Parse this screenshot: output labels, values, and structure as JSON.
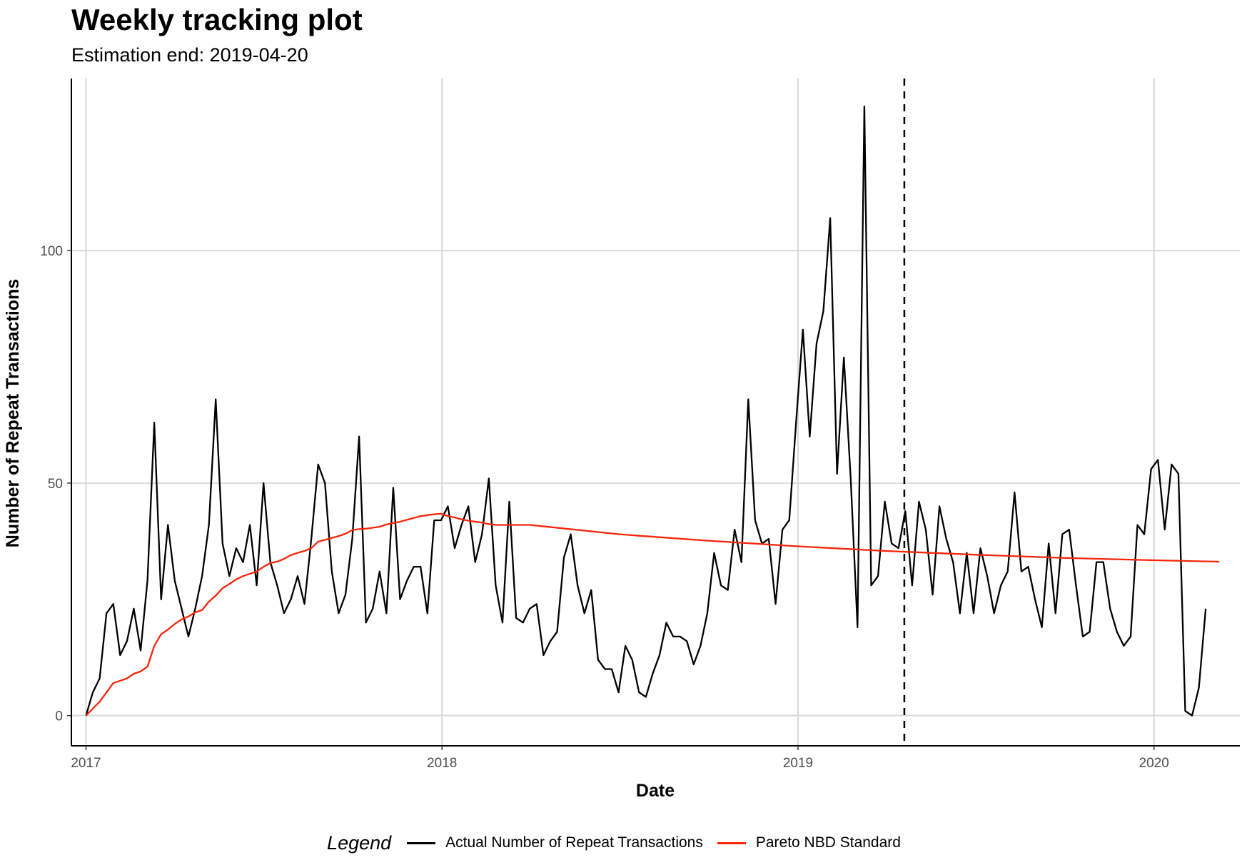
{
  "chart_data": {
    "type": "line",
    "title": "Weekly tracking plot",
    "subtitle": "Estimation end: 2019-04-20",
    "xlabel": "Date",
    "ylabel": "Number of Repeat Transactions",
    "x_ticks": [
      "2017",
      "2018",
      "2019",
      "2020"
    ],
    "y_ticks": [
      0,
      50,
      100
    ],
    "xlim": [
      "2016-12-17",
      "2020-03-29"
    ],
    "ylim": [
      -6.5,
      137
    ],
    "grid": true,
    "legend_position": "bottom",
    "legend_title": "Legend",
    "estimation_end": "2019-04-20",
    "series": [
      {
        "name": "Actual Number of Repeat Transactions",
        "color": "#000000",
        "x_start": "2017-01-01",
        "x_step_days": 7,
        "values": [
          0,
          5,
          8,
          22,
          24,
          13,
          16,
          23,
          14,
          29,
          63,
          25,
          41,
          29,
          23,
          17,
          23,
          30,
          41,
          68,
          37,
          30,
          36,
          33,
          41,
          28,
          50,
          33,
          28,
          22,
          25,
          30,
          24,
          38,
          54,
          50,
          31,
          22,
          26,
          38,
          60,
          20,
          23,
          31,
          22,
          49,
          25,
          29,
          32,
          32,
          22,
          42,
          42,
          45,
          36,
          41,
          45,
          33,
          39,
          51,
          28,
          20,
          46,
          21,
          20,
          23,
          24,
          13,
          16,
          18,
          34,
          39,
          28,
          22,
          27,
          12,
          10,
          10,
          5,
          15,
          12,
          5,
          4,
          9,
          13,
          20,
          17,
          17,
          16,
          11,
          15,
          22,
          35,
          28,
          27,
          40,
          33,
          68,
          42,
          37,
          38,
          24,
          40,
          42,
          63,
          83,
          60,
          80,
          87,
          107,
          52,
          77,
          51,
          19,
          131,
          28,
          30,
          46,
          37,
          36,
          44,
          28,
          46,
          40,
          26,
          45,
          38,
          33,
          22,
          35,
          22,
          36,
          30,
          22,
          28,
          31,
          48,
          31,
          32,
          25,
          19,
          37,
          22,
          39,
          40,
          28,
          17,
          18,
          33,
          33,
          23,
          18,
          15,
          17,
          41,
          39,
          53,
          55,
          40,
          54,
          52,
          1,
          0,
          6,
          23
        ]
      },
      {
        "name": "Pareto NBD Standard",
        "color": "#f8250b",
        "x_start": "2017-01-01",
        "x_step_days": 7,
        "values": [
          0,
          1.5,
          3,
          5,
          7,
          7.5,
          8,
          9,
          9.5,
          10.5,
          15,
          17.5,
          18.5,
          19.7,
          20.7,
          21.3,
          22.2,
          22.7,
          24.5,
          25.8,
          27.4,
          28.3,
          29.3,
          30,
          30.5,
          31,
          32,
          32.8,
          33.1,
          33.7,
          34.5,
          35,
          35.4,
          36,
          37.4,
          37.8,
          38.2,
          38.6,
          39.1,
          39.9,
          40.1,
          40.2,
          40.4,
          40.6,
          41.1,
          41.4,
          41.7,
          42.1,
          42.5,
          42.9,
          43.1,
          43.3,
          43.4,
          42.9,
          42.6,
          42.2,
          41.9,
          41.7,
          41.5,
          41.2,
          41
        ]
      }
    ],
    "pareto_tail_end": {
      "x": "2020-03-08",
      "y": 33.1
    },
    "pareto_decline": [
      {
        "x": "2018-04-01",
        "y": 41.0
      },
      {
        "x": "2018-07-01",
        "y": 39.0
      },
      {
        "x": "2018-10-01",
        "y": 37.6
      },
      {
        "x": "2019-01-01",
        "y": 36.4
      },
      {
        "x": "2019-04-01",
        "y": 35.4
      },
      {
        "x": "2019-07-01",
        "y": 34.6
      },
      {
        "x": "2019-10-01",
        "y": 33.9
      },
      {
        "x": "2020-01-01",
        "y": 33.4
      },
      {
        "x": "2020-03-08",
        "y": 33.1
      }
    ]
  }
}
